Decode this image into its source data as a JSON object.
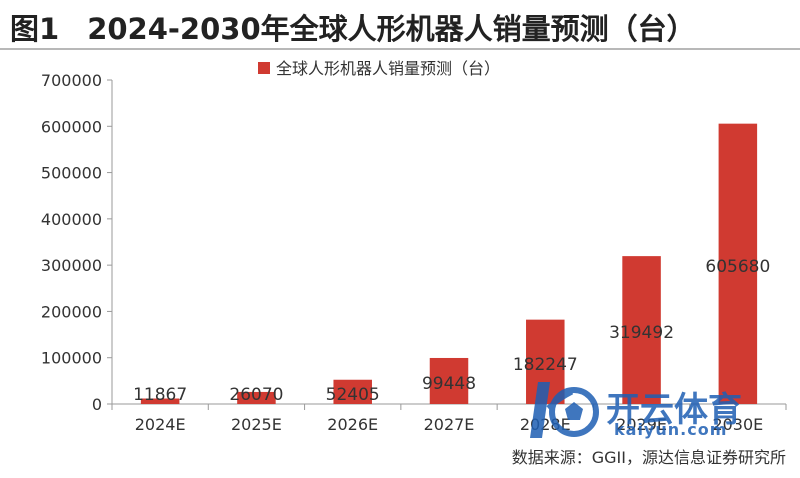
{
  "figure": {
    "number": "图1",
    "title": "2024-2030年全球人形机器人销量预测（台）",
    "source": "数据来源：GGII，源达信息证券研究所"
  },
  "watermark": {
    "text": "开云体育",
    "url": "kaiyun.com",
    "icon": "soccer-ball-k-logo-icon"
  },
  "colors": {
    "bar": "#d03a31",
    "axis": "#9a9a9a",
    "text": "#333333"
  },
  "chart_data": {
    "type": "bar",
    "categories": [
      "2024E",
      "2025E",
      "2026E",
      "2027E",
      "2028E",
      "2029E",
      "2030E"
    ],
    "series": [
      {
        "name": "全球人形机器人销量预测（台）",
        "values": [
          11867,
          26070,
          52405,
          99448,
          182247,
          319492,
          605680
        ]
      }
    ],
    "data_labels": [
      "11867",
      "26070",
      "52405",
      "99448",
      "182247",
      "319492",
      "605680"
    ],
    "ylim": [
      0,
      700000
    ],
    "yticks": [
      0,
      100000,
      200000,
      300000,
      400000,
      500000,
      600000,
      700000
    ],
    "ytick_labels": [
      "0",
      "100000",
      "200000",
      "300000",
      "400000",
      "500000",
      "600000",
      "700000"
    ],
    "grid": false,
    "legend_position": "top-center"
  }
}
